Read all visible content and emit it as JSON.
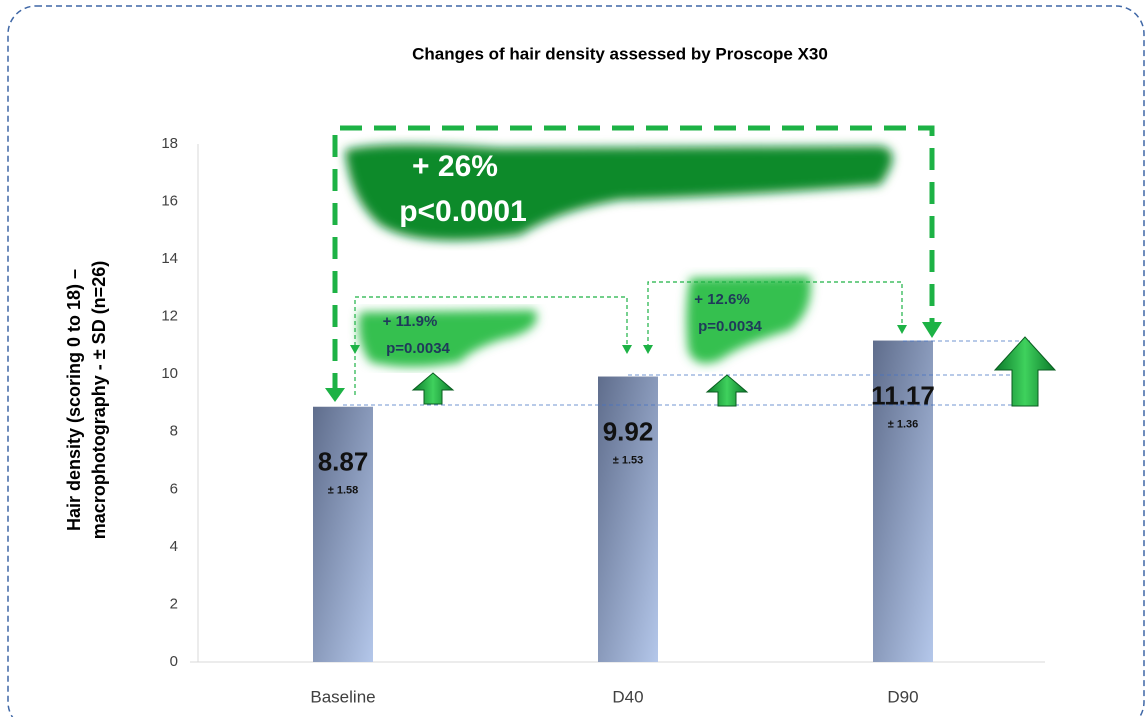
{
  "chart_data": {
    "type": "bar",
    "title": "Changes of hair density assessed by Proscope X30",
    "ylabel": [
      "Hair density (scoring 0 to 18) –",
      "macrophotography - ± SD (n=26)"
    ],
    "categories": [
      "Baseline",
      "D40",
      "D90"
    ],
    "values": [
      8.87,
      9.92,
      11.17
    ],
    "sd_labels": [
      "± 1.58",
      "± 1.53",
      "± 1.36"
    ],
    "ylim": [
      0,
      18
    ],
    "yticks": [
      0,
      2,
      4,
      6,
      8,
      10,
      12,
      14,
      16,
      18
    ],
    "annotations": [
      {
        "lines": [
          "+ 26%",
          "p<0.0001"
        ]
      },
      {
        "lines": [
          "+ 11.9%",
          "p=0.0034"
        ]
      },
      {
        "lines": [
          "+ 12.6%",
          "p=0.0034"
        ]
      }
    ]
  }
}
